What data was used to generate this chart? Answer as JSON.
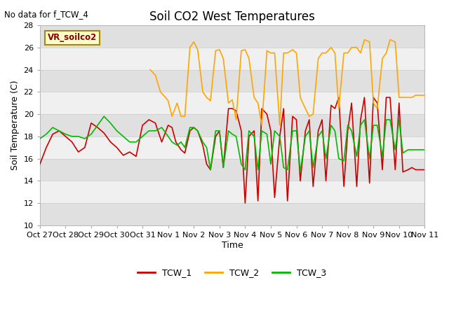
{
  "title": "Soil CO2 West Temperatures",
  "no_data_text": "No data for f_TCW_4",
  "xlabel": "Time",
  "ylabel": "Soil Temperature (C)",
  "ylim": [
    10,
    28
  ],
  "yticks": [
    10,
    12,
    14,
    16,
    18,
    20,
    22,
    24,
    26,
    28
  ],
  "vr_label": "VR_soilco2",
  "legend_entries": [
    "TCW_1",
    "TCW_2",
    "TCW_3"
  ],
  "colors": {
    "TCW_1": "#cc0000",
    "TCW_2": "#ffa500",
    "TCW_3": "#00bb00"
  },
  "fig_bg": "#ffffff",
  "plot_bg": "#f0f0f0",
  "band_light": "#f0f0f0",
  "band_dark": "#e0e0e0",
  "x_tick_labels": [
    "Oct 27",
    "Oct 28",
    "Oct 29",
    "Oct 30",
    "Oct 31",
    "Nov 1",
    "Nov 2",
    "Nov 3",
    "Nov 4",
    "Nov 5",
    "Nov 6",
    "Nov 7",
    "Nov 8",
    "Nov 9",
    "Nov 10",
    "Nov 11"
  ],
  "tcw1_x": [
    0,
    0.25,
    0.5,
    0.75,
    1.0,
    1.25,
    1.5,
    1.75,
    2.0,
    2.25,
    2.5,
    2.75,
    3.0,
    3.25,
    3.5,
    3.75,
    4.0,
    4.25,
    4.5,
    4.75,
    5.0,
    5.15,
    5.3,
    5.5,
    5.65,
    5.85,
    6.0,
    6.15,
    6.35,
    6.5,
    6.65,
    6.85,
    7.0,
    7.15,
    7.35,
    7.5,
    7.65,
    7.85,
    8.0,
    8.15,
    8.35,
    8.5,
    8.65,
    8.85,
    9.0,
    9.15,
    9.35,
    9.5,
    9.65,
    9.85,
    10.0,
    10.15,
    10.35,
    10.5,
    10.65,
    10.85,
    11.0,
    11.15,
    11.35,
    11.5,
    11.65,
    11.85,
    12.0,
    12.15,
    12.35,
    12.5,
    12.65,
    12.85,
    13.0,
    13.15,
    13.35,
    13.5,
    13.65,
    13.85,
    14.0,
    14.15,
    14.35,
    14.5,
    14.65,
    14.85,
    15.0
  ],
  "tcw1_y": [
    15.5,
    17.0,
    18.2,
    18.5,
    18.0,
    17.5,
    16.6,
    17.0,
    19.2,
    18.8,
    18.3,
    17.5,
    17.0,
    16.3,
    16.6,
    16.2,
    19.0,
    19.5,
    19.2,
    17.5,
    19.0,
    18.8,
    17.5,
    16.8,
    16.5,
    18.5,
    18.8,
    18.5,
    17.2,
    15.5,
    15.0,
    18.0,
    18.5,
    15.2,
    20.5,
    20.5,
    20.3,
    18.5,
    12.0,
    18.0,
    18.5,
    12.2,
    20.5,
    20.0,
    18.5,
    12.5,
    18.0,
    20.5,
    12.2,
    19.8,
    19.5,
    14.0,
    18.5,
    19.5,
    13.5,
    18.5,
    19.5,
    14.0,
    20.8,
    20.5,
    21.5,
    13.5,
    18.5,
    21.0,
    13.5,
    19.5,
    21.5,
    13.8,
    21.5,
    21.0,
    15.0,
    21.5,
    21.5,
    15.0,
    21.0,
    14.8,
    15.0,
    15.2,
    15.0,
    15.0,
    15.0
  ],
  "tcw2_x": [
    4.3,
    4.5,
    4.7,
    4.9,
    5.0,
    5.15,
    5.35,
    5.5,
    5.65,
    5.85,
    6.0,
    6.15,
    6.35,
    6.5,
    6.65,
    6.85,
    7.0,
    7.15,
    7.35,
    7.5,
    7.65,
    7.85,
    8.0,
    8.15,
    8.35,
    8.5,
    8.65,
    8.85,
    9.0,
    9.15,
    9.35,
    9.5,
    9.65,
    9.85,
    10.0,
    10.15,
    10.35,
    10.5,
    10.65,
    10.85,
    11.0,
    11.15,
    11.35,
    11.5,
    11.65,
    11.85,
    12.0,
    12.15,
    12.35,
    12.5,
    12.65,
    12.85,
    13.0,
    13.15,
    13.35,
    13.5,
    13.65,
    13.85,
    14.0,
    14.15,
    14.35,
    14.5,
    14.65,
    14.85,
    15.0
  ],
  "tcw2_y": [
    24.0,
    23.5,
    22.0,
    21.5,
    21.2,
    19.8,
    21.0,
    19.8,
    19.8,
    26.0,
    26.5,
    25.8,
    22.0,
    21.5,
    21.2,
    25.7,
    25.8,
    25.0,
    21.0,
    21.3,
    19.5,
    25.7,
    25.8,
    25.0,
    21.5,
    21.0,
    19.0,
    25.7,
    25.5,
    25.5,
    19.0,
    25.5,
    25.5,
    25.8,
    25.5,
    21.5,
    20.5,
    19.8,
    20.0,
    25.0,
    25.5,
    25.5,
    26.0,
    25.5,
    20.5,
    25.5,
    25.5,
    26.0,
    26.0,
    25.5,
    26.7,
    26.5,
    21.0,
    20.5,
    25.0,
    25.5,
    26.7,
    26.5,
    21.5,
    21.5,
    21.5,
    21.5,
    21.7,
    21.7,
    21.7
  ],
  "tcw3_x": [
    0,
    0.25,
    0.5,
    0.75,
    1.0,
    1.25,
    1.5,
    1.75,
    2.0,
    2.25,
    2.5,
    2.75,
    3.0,
    3.25,
    3.5,
    3.75,
    4.0,
    4.25,
    4.5,
    4.75,
    5.0,
    5.15,
    5.35,
    5.5,
    5.65,
    5.85,
    6.0,
    6.15,
    6.35,
    6.5,
    6.65,
    6.85,
    7.0,
    7.15,
    7.35,
    7.5,
    7.65,
    7.85,
    8.0,
    8.15,
    8.35,
    8.5,
    8.65,
    8.85,
    9.0,
    9.15,
    9.35,
    9.5,
    9.65,
    9.85,
    10.0,
    10.15,
    10.35,
    10.5,
    10.65,
    10.85,
    11.0,
    11.15,
    11.35,
    11.5,
    11.65,
    11.85,
    12.0,
    12.15,
    12.35,
    12.5,
    12.65,
    12.85,
    13.0,
    13.15,
    13.35,
    13.5,
    13.65,
    13.85,
    14.0,
    14.15,
    14.35,
    14.5,
    14.65,
    14.85,
    15.0
  ],
  "tcw3_y": [
    17.8,
    18.2,
    18.8,
    18.5,
    18.2,
    18.0,
    18.0,
    17.8,
    18.2,
    19.0,
    19.8,
    19.2,
    18.5,
    18.0,
    17.5,
    17.5,
    18.0,
    18.5,
    18.5,
    18.8,
    18.0,
    17.5,
    17.2,
    17.5,
    17.0,
    18.8,
    18.8,
    18.5,
    17.5,
    17.0,
    15.0,
    18.5,
    18.5,
    15.2,
    18.5,
    18.2,
    18.0,
    15.5,
    15.0,
    18.5,
    18.0,
    15.0,
    18.5,
    18.2,
    15.5,
    18.5,
    18.0,
    15.2,
    15.0,
    18.5,
    18.5,
    14.8,
    18.0,
    18.5,
    15.2,
    18.0,
    18.5,
    16.0,
    19.0,
    18.5,
    16.0,
    15.8,
    19.0,
    18.5,
    16.2,
    19.0,
    19.5,
    16.0,
    19.0,
    19.0,
    16.2,
    19.5,
    19.5,
    16.8,
    19.5,
    16.5,
    16.8,
    16.8,
    16.8,
    16.8,
    16.8
  ]
}
